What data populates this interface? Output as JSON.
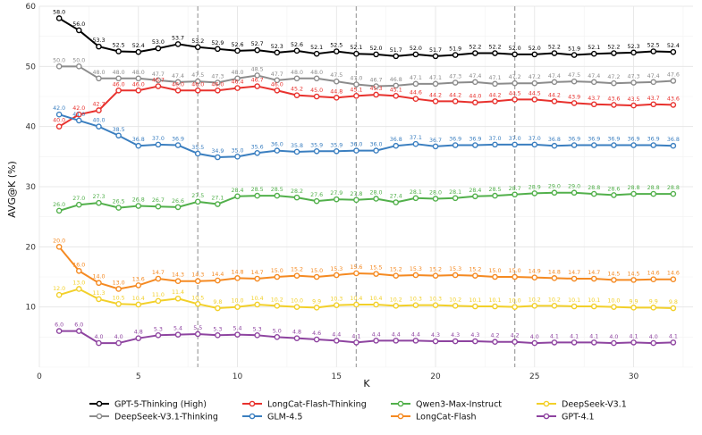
{
  "chart_data": {
    "type": "line",
    "title": "",
    "xlabel": "K",
    "ylabel": "AVG@K (%)",
    "xlim": [
      0,
      33
    ],
    "ylim": [
      0,
      60
    ],
    "xticks": [
      0,
      5,
      10,
      15,
      20,
      25,
      30
    ],
    "yticks": [
      10,
      20,
      30,
      40,
      50,
      60
    ],
    "grid": true,
    "legend_position": "bottom",
    "vlines": [
      8,
      16,
      24
    ],
    "x": [
      1,
      2,
      3,
      4,
      5,
      6,
      7,
      8,
      9,
      10,
      11,
      12,
      13,
      14,
      15,
      16,
      17,
      18,
      19,
      20,
      21,
      22,
      23,
      24,
      25,
      26,
      27,
      28,
      29,
      30,
      31,
      32
    ],
    "series": [
      {
        "name": "GPT-5-Thinking (High)",
        "color": "#000000",
        "values": [
          58.0,
          56.0,
          53.3,
          52.5,
          52.4,
          53.0,
          53.7,
          53.2,
          52.9,
          52.6,
          52.7,
          52.3,
          52.6,
          52.1,
          52.5,
          52.1,
          52.0,
          51.7,
          52.0,
          51.7,
          51.9,
          52.2,
          52.2,
          52.0,
          52.0,
          52.2,
          51.9,
          52.1,
          52.2,
          52.3,
          52.5,
          52.4
        ]
      },
      {
        "name": "DeepSeek-V3.1-Thinking",
        "color": "#8c8c8c",
        "values": [
          50.0,
          50.0,
          48.0,
          48.0,
          48.0,
          47.7,
          47.4,
          47.5,
          47.3,
          48.0,
          48.5,
          47.7,
          48.0,
          48.0,
          47.5,
          47.0,
          46.7,
          46.8,
          47.1,
          47.1,
          47.3,
          47.4,
          47.1,
          47.2,
          47.2,
          47.4,
          47.5,
          47.4,
          47.2,
          47.3,
          47.4,
          47.6
        ]
      },
      {
        "name": "LongCat-Flash-Thinking",
        "color": "#e8322e",
        "values": [
          40.0,
          42.0,
          42.7,
          46.0,
          46.0,
          46.7,
          46.0,
          46.0,
          46.0,
          46.4,
          46.7,
          46.0,
          45.2,
          45.0,
          44.8,
          45.1,
          45.3,
          45.1,
          44.6,
          44.2,
          44.2,
          44.0,
          44.2,
          44.5,
          44.5,
          44.2,
          43.9,
          43.7,
          43.6,
          43.5,
          43.7,
          43.6
        ]
      },
      {
        "name": "GLM-4.5",
        "color": "#3b7fc0",
        "values": [
          42.0,
          41.0,
          40.0,
          38.5,
          36.8,
          37.0,
          36.9,
          35.5,
          34.9,
          35.0,
          35.6,
          36.0,
          35.8,
          35.9,
          35.9,
          36.0,
          36.0,
          36.8,
          37.1,
          36.7,
          36.9,
          36.9,
          37.0,
          37.0,
          37.0,
          36.8,
          36.9,
          36.9,
          36.9,
          36.9,
          36.9,
          36.8
        ]
      },
      {
        "name": "Qwen3-Max-Instruct",
        "color": "#52b04b",
        "values": [
          26.0,
          27.0,
          27.3,
          26.5,
          26.8,
          26.7,
          26.6,
          27.5,
          27.1,
          28.4,
          28.5,
          28.5,
          28.2,
          27.6,
          27.9,
          27.8,
          28.0,
          27.4,
          28.1,
          28.0,
          28.1,
          28.4,
          28.5,
          28.7,
          28.9,
          29.0,
          29.0,
          28.8,
          28.6,
          28.8,
          28.8,
          28.8
        ]
      },
      {
        "name": "LongCat-Flash",
        "color": "#f58a22",
        "values": [
          20.0,
          16.0,
          14.0,
          13.0,
          13.6,
          14.7,
          14.3,
          14.3,
          14.4,
          14.8,
          14.7,
          15.0,
          15.2,
          15.0,
          15.3,
          15.6,
          15.5,
          15.2,
          15.3,
          15.2,
          15.3,
          15.2,
          15.0,
          15.0,
          14.9,
          14.8,
          14.7,
          14.7,
          14.5,
          14.5,
          14.6,
          14.6
        ]
      },
      {
        "name": "DeepSeek-V3.1",
        "color": "#f2d02a",
        "values": [
          12.0,
          13.0,
          11.3,
          10.5,
          10.4,
          11.0,
          11.4,
          10.5,
          9.8,
          10.0,
          10.4,
          10.2,
          10.0,
          9.9,
          10.3,
          10.4,
          10.4,
          10.2,
          10.3,
          10.3,
          10.2,
          10.1,
          10.1,
          10.0,
          10.2,
          10.2,
          10.1,
          10.1,
          10.0,
          9.9,
          9.9,
          9.8
        ]
      },
      {
        "name": "GPT-4.1",
        "color": "#8e44a0",
        "values": [
          6.0,
          6.0,
          4.0,
          4.0,
          4.8,
          5.3,
          5.4,
          5.5,
          5.3,
          5.4,
          5.3,
          5.0,
          4.8,
          4.6,
          4.4,
          4.1,
          4.4,
          4.4,
          4.4,
          4.3,
          4.3,
          4.3,
          4.2,
          4.2,
          4.0,
          4.1,
          4.1,
          4.1,
          4.0,
          4.1,
          4.0,
          4.1
        ]
      }
    ],
    "legend_order": [
      0,
      2,
      4,
      6,
      1,
      3,
      5,
      7
    ]
  }
}
